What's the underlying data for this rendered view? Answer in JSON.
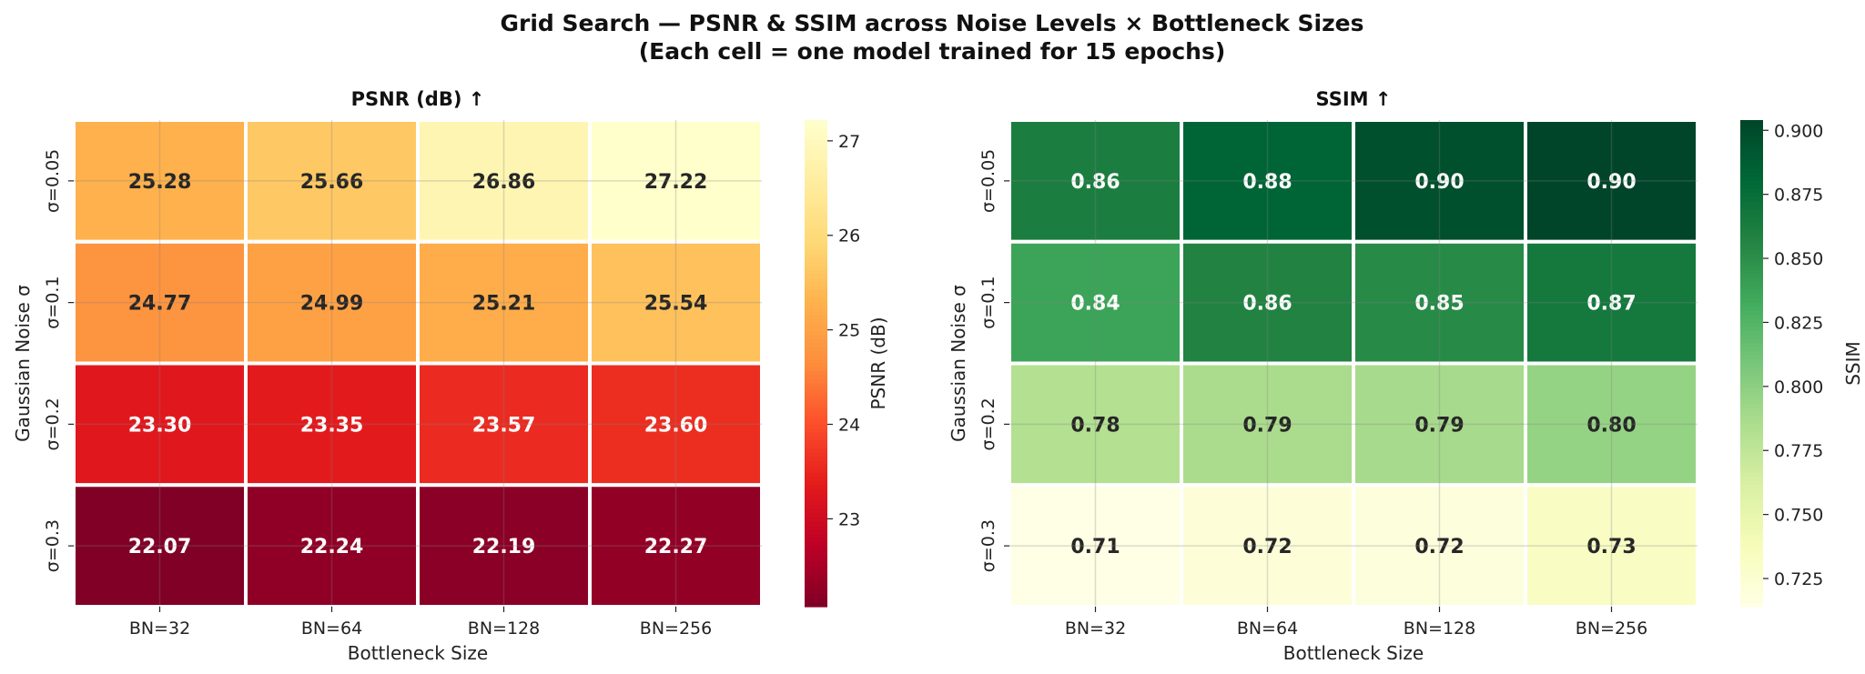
{
  "figure": {
    "title_line1": "Grid Search — PSNR & SSIM across Noise Levels × Bottleneck Sizes",
    "title_line2": "(Each cell = one model trained for 15 epochs)"
  },
  "chart_data": [
    {
      "type": "heatmap",
      "title": "PSNR (dB) ↑",
      "xlabel": "Bottleneck Size",
      "ylabel": "Gaussian Noise σ",
      "columns": [
        "BN=32",
        "BN=64",
        "BN=128",
        "BN=256"
      ],
      "rows": [
        "σ=0.05",
        "σ=0.1",
        "σ=0.2",
        "σ=0.3"
      ],
      "values": [
        [
          25.28,
          25.66,
          26.86,
          27.22
        ],
        [
          24.77,
          24.99,
          25.21,
          25.54
        ],
        [
          23.3,
          23.35,
          23.57,
          23.6
        ],
        [
          22.07,
          22.24,
          22.19,
          22.27
        ]
      ],
      "cell_text": [
        [
          "25.28",
          "25.66",
          "26.86",
          "27.22"
        ],
        [
          "24.77",
          "24.99",
          "25.21",
          "25.54"
        ],
        [
          "23.30",
          "23.35",
          "23.57",
          "23.60"
        ],
        [
          "22.07",
          "22.24",
          "22.19",
          "22.27"
        ]
      ],
      "colormap": "YlOrRd_r",
      "vmin": 22.07,
      "vmax": 27.22,
      "colorbar": {
        "label": "PSNR (dB)",
        "ticks": [
          23,
          24,
          25,
          26,
          27
        ],
        "tick_labels": [
          "23",
          "24",
          "25",
          "26",
          "27"
        ]
      }
    },
    {
      "type": "heatmap",
      "title": "SSIM ↑",
      "xlabel": "Bottleneck Size",
      "ylabel": "Gaussian Noise σ",
      "columns": [
        "BN=32",
        "BN=64",
        "BN=128",
        "BN=256"
      ],
      "rows": [
        "σ=0.05",
        "σ=0.1",
        "σ=0.2",
        "σ=0.3"
      ],
      "values": [
        [
          0.862,
          0.882,
          0.897,
          0.904
        ],
        [
          0.837,
          0.858,
          0.853,
          0.866
        ],
        [
          0.782,
          0.786,
          0.788,
          0.796
        ],
        [
          0.714,
          0.721,
          0.719,
          0.732
        ]
      ],
      "cell_text": [
        [
          "0.86",
          "0.88",
          "0.90",
          "0.90"
        ],
        [
          "0.84",
          "0.86",
          "0.85",
          "0.87"
        ],
        [
          "0.78",
          "0.79",
          "0.79",
          "0.80"
        ],
        [
          "0.71",
          "0.72",
          "0.72",
          "0.73"
        ]
      ],
      "colormap": "YlGn",
      "vmin": 0.714,
      "vmax": 0.904,
      "colorbar": {
        "label": "SSIM",
        "ticks": [
          0.725,
          0.75,
          0.775,
          0.8,
          0.825,
          0.85,
          0.875,
          0.9
        ],
        "tick_labels": [
          "0.725",
          "0.750",
          "0.775",
          "0.800",
          "0.825",
          "0.850",
          "0.875",
          "0.900"
        ]
      }
    }
  ]
}
